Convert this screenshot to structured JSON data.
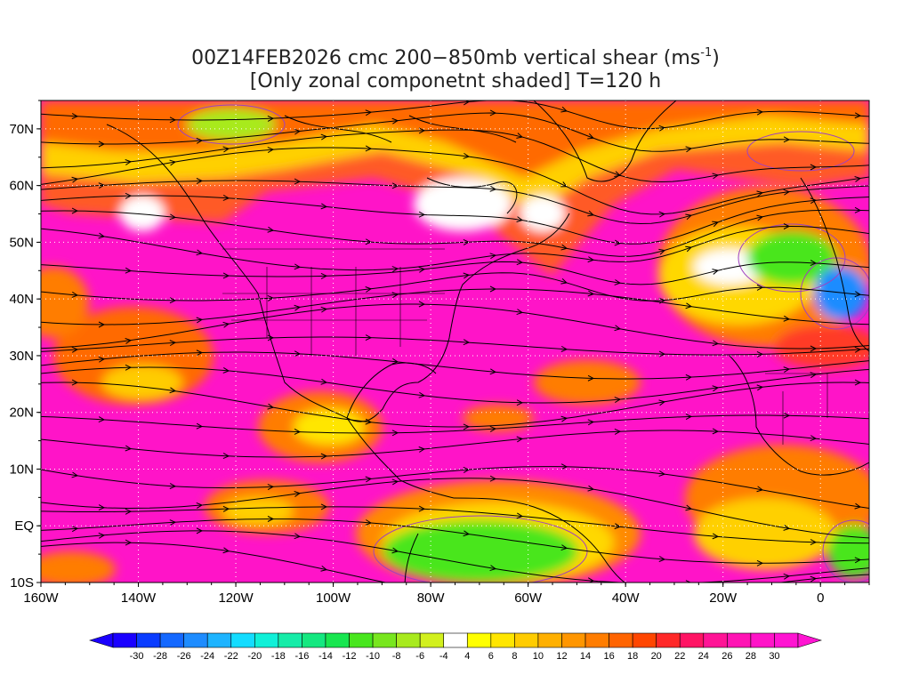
{
  "title": {
    "line1": "00Z14FEB2026 cmc 200−850mb vertical shear (ms",
    "line1_sup": "-1",
    "line1_end": ")",
    "line2": "[Only zonal componetnt shaded] T=120 h"
  },
  "map": {
    "lon_range": [
      -160,
      10
    ],
    "lat_range": [
      -10,
      75
    ],
    "x_ticks": [
      "160W",
      "140W",
      "120W",
      "100W",
      "80W",
      "60W",
      "40W",
      "20W",
      "0"
    ],
    "y_ticks": [
      "10S",
      "EQ",
      "10N",
      "20N",
      "30N",
      "40N",
      "50N",
      "60N",
      "70N"
    ]
  },
  "colorbar": {
    "labels": [
      "-30",
      "-28",
      "-26",
      "-24",
      "-22",
      "-20",
      "-18",
      "-16",
      "-14",
      "-12",
      "-10",
      "-8",
      "-6",
      "-4",
      "4",
      "6",
      "8",
      "10",
      "12",
      "14",
      "16",
      "18",
      "20",
      "22",
      "24",
      "26",
      "28",
      "30"
    ],
    "colors": [
      "#1a00ff",
      "#0a3cff",
      "#1468ff",
      "#1e8cff",
      "#1eb4ff",
      "#14dcff",
      "#10f0d8",
      "#16eca8",
      "#14e880",
      "#18e650",
      "#48e61e",
      "#78e61e",
      "#a8ea1e",
      "#d2f01e",
      "#ffffff",
      "#ffff00",
      "#ffe600",
      "#ffcc00",
      "#ffb000",
      "#ff9600",
      "#ff7d00",
      "#ff6400",
      "#ff4600",
      "#ff2828",
      "#ff1464",
      "#ff1496",
      "#ff14b4",
      "#ff14c8",
      "#ff14d2"
    ]
  },
  "palette": {
    "magenta": "#ff14c8",
    "red": "#ff2850",
    "orange": "#ff7d00",
    "yellow": "#ffe600",
    "green": "#48e61e",
    "lightgreen": "#a8ea1e",
    "blue": "#1e8cff",
    "coast": "#000000",
    "contour": "#a040c0",
    "grid": "#ffffff"
  }
}
